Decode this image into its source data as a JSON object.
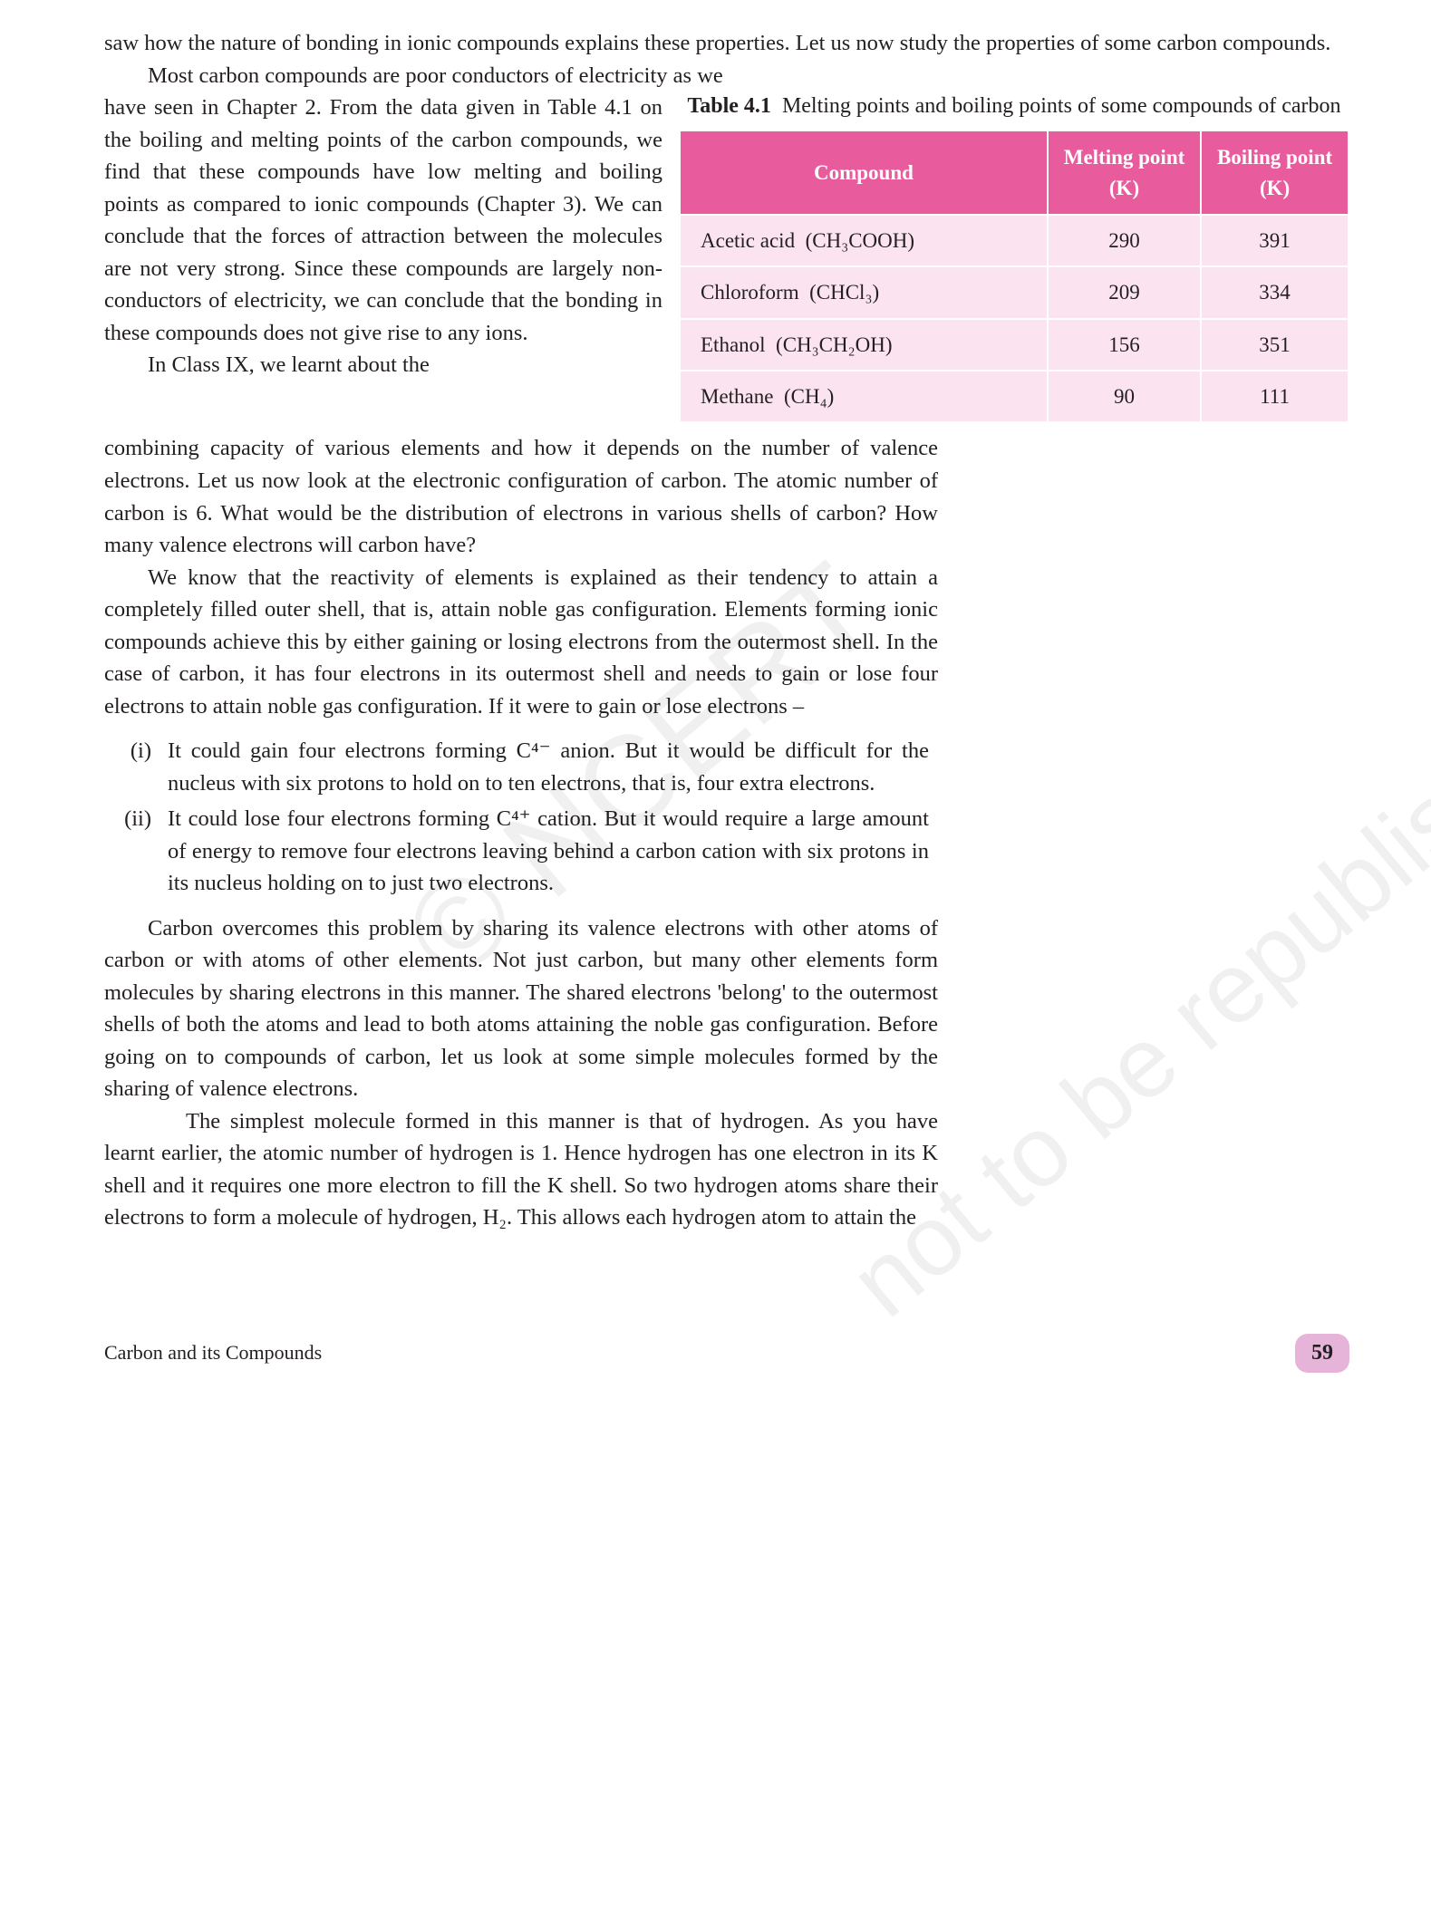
{
  "para1": "saw how the nature of bonding in ionic compounds explains these properties. Let us now study the properties of some carbon compounds.",
  "para2_lead": "Most carbon compounds are poor conductors of electricity as we",
  "para2_body": "have seen in Chapter 2. From the data given in Table 4.1 on the boiling and melting points of the carbon compounds, we find that these compounds have low melting and boiling points as compared to ionic compounds (Chapter 3). We can conclude that the forces of attraction between the molecules are not very strong. Since these compounds are largely non-conductors of electricity, we can conclude that the bonding in these compounds does not give rise to any ions.",
  "table": {
    "caption_label": "Table 4.1",
    "caption_text": "Melting points and boiling points of some compounds of carbon",
    "headers": {
      "c1": "Compound",
      "c2": "Melting point (K)",
      "c3": "Boiling point (K)"
    },
    "rows": [
      {
        "name": "Acetic acid",
        "formula": "(CH₃COOH)",
        "mp": "290",
        "bp": "391"
      },
      {
        "name": "Chloroform",
        "formula": "(CHCl₃)",
        "mp": "209",
        "bp": "334"
      },
      {
        "name": "Ethanol",
        "formula": "(CH₃CH₂OH)",
        "mp": "156",
        "bp": "351"
      },
      {
        "name": "Methane",
        "formula": "(CH₄)",
        "mp": "90",
        "bp": "111"
      }
    ]
  },
  "para3_lead": "In Class IX, we learnt about the",
  "para3_body": "combining capacity of various elements and how it depends on the number of valence electrons. Let us now look at the electronic configuration of carbon. The atomic number of carbon is 6. What would be the distribution of electrons in various shells of carbon? How many valence electrons will carbon have?",
  "para4": "We know that the reactivity of elements is explained as their tendency to attain a completely filled outer shell, that is, attain noble gas configuration. Elements forming ionic compounds achieve this by either gaining or losing electrons from the outermost shell. In the case of carbon, it has four electrons in its outermost shell and needs to gain or lose four electrons to attain noble gas configuration. If it were to gain or lose electrons –",
  "list": {
    "i_marker": "(i)",
    "i_text": "It could gain four electrons forming C⁴⁻ anion. But it would be difficult for the nucleus with six protons to hold on to ten electrons, that is, four extra electrons.",
    "ii_marker": "(ii)",
    "ii_text": "It could lose four electrons forming C⁴⁺ cation. But it would require a large amount of energy to remove four electrons leaving behind a carbon cation with six protons in its nucleus holding on to just two electrons."
  },
  "para5": "Carbon overcomes this problem by sharing its valence electrons with other atoms of carbon or with atoms of other elements. Not just carbon, but many other elements form molecules by sharing electrons in this manner. The shared electrons 'belong' to the outermost shells of both the atoms and lead to both atoms attaining the noble gas configuration. Before going on to compounds of carbon, let us look at some simple molecules formed by the sharing of valence electrons.",
  "para6": "The simplest molecule formed in this manner is that of hydrogen. As you have learnt earlier, the atomic number of hydrogen is 1. Hence hydrogen has one electron in its K shell and it requires one more electron to fill the K shell. So two hydrogen atoms share their electrons to form a molecule of hydrogen, H₂. This allows each hydrogen atom to attain the",
  "footer": {
    "chapter": "Carbon and its Compounds",
    "page": "59"
  },
  "watermarks": {
    "w1": "© NCERT",
    "w2": "not to be republished"
  },
  "colors": {
    "header_bg": "#e85c9e",
    "header_fg": "#ffffff",
    "cell_bg": "#fbe4ef",
    "pagenum_bg": "#e6b3d9",
    "text": "#231f20"
  },
  "fontsize": {
    "body": 24.5,
    "table": 23,
    "caption": 24,
    "footer": 22,
    "pagenum": 24,
    "watermark": 140
  }
}
